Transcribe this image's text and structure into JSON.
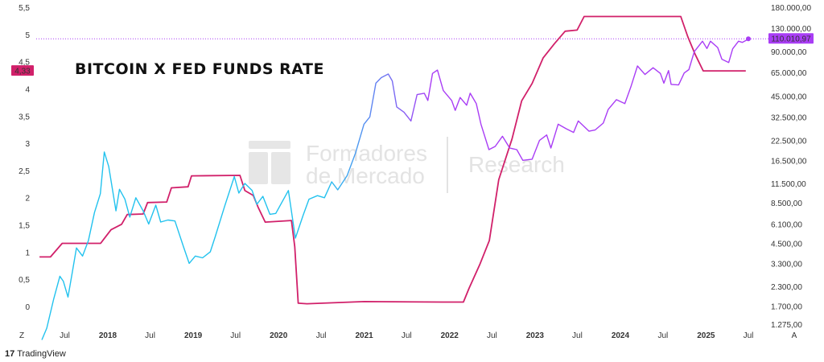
{
  "chart_data": {
    "type": "line",
    "title": "BITCOIN X FED FUNDS RATE",
    "watermark": {
      "line1": "Formadores",
      "line2": "de Mercado",
      "right": "Research"
    },
    "x_axis": {
      "range": [
        "2017-03-01",
        "2025-09-01"
      ],
      "ticks": [
        {
          "date": "2017-07-01",
          "label": "Jul",
          "bold": false
        },
        {
          "date": "2018-01-01",
          "label": "2018",
          "bold": true
        },
        {
          "date": "2018-07-01",
          "label": "Jul",
          "bold": false
        },
        {
          "date": "2019-01-01",
          "label": "2019",
          "bold": true
        },
        {
          "date": "2019-07-01",
          "label": "Jul",
          "bold": false
        },
        {
          "date": "2020-01-01",
          "label": "2020",
          "bold": true
        },
        {
          "date": "2020-07-01",
          "label": "Jul",
          "bold": false
        },
        {
          "date": "2021-01-01",
          "label": "2021",
          "bold": true
        },
        {
          "date": "2021-07-01",
          "label": "Jul",
          "bold": false
        },
        {
          "date": "2022-01-01",
          "label": "2022",
          "bold": true
        },
        {
          "date": "2022-07-01",
          "label": "Jul",
          "bold": false
        },
        {
          "date": "2023-01-01",
          "label": "2023",
          "bold": true
        },
        {
          "date": "2023-07-01",
          "label": "Jul",
          "bold": false
        },
        {
          "date": "2024-01-01",
          "label": "2024",
          "bold": true
        },
        {
          "date": "2024-07-01",
          "label": "Jul",
          "bold": false
        },
        {
          "date": "2025-01-01",
          "label": "2025",
          "bold": true
        },
        {
          "date": "2025-07-01",
          "label": "Jul",
          "bold": false
        }
      ]
    },
    "left_axis": {
      "label": "",
      "range": [
        -0.4,
        5.5
      ],
      "ticks": [
        {
          "value": 0,
          "label": "0"
        },
        {
          "value": 0.5,
          "label": "0,5"
        },
        {
          "value": 1,
          "label": "1"
        },
        {
          "value": 1.5,
          "label": "1,5"
        },
        {
          "value": 2,
          "label": "2"
        },
        {
          "value": 2.5,
          "label": "2,5"
        },
        {
          "value": 3,
          "label": "3"
        },
        {
          "value": 3.5,
          "label": "3,5"
        },
        {
          "value": 4,
          "label": "4"
        },
        {
          "value": 4.5,
          "label": "4,5"
        },
        {
          "value": 5,
          "label": "5"
        },
        {
          "value": 5.5,
          "label": "5,5"
        }
      ]
    },
    "right_axis": {
      "label": "",
      "scale": "log",
      "range": [
        1200,
        180000
      ],
      "ticks": [
        {
          "value": 180000,
          "label": "180.000,00"
        },
        {
          "value": 130000,
          "label": "130.000,00"
        },
        {
          "value": 90000,
          "label": "90.000,00"
        },
        {
          "value": 65000,
          "label": "65.000,00"
        },
        {
          "value": 45000,
          "label": "45.000,00"
        },
        {
          "value": 32500,
          "label": "32.500,00"
        },
        {
          "value": 22500,
          "label": "22.500,00"
        },
        {
          "value": 16500,
          "label": "16.500,00"
        },
        {
          "value": 11500,
          "label": "11.500,00"
        },
        {
          "value": 8500,
          "label": "8.500,00"
        },
        {
          "value": 6100,
          "label": "6.100,00"
        },
        {
          "value": 4500,
          "label": "4.500,00"
        },
        {
          "value": 3300,
          "label": "3.300,00"
        },
        {
          "value": 2300,
          "label": "2.300,00"
        },
        {
          "value": 1700,
          "label": "1.700,00"
        },
        {
          "value": 1275,
          "label": "1.275,00"
        }
      ]
    },
    "markers": {
      "fed_current": {
        "value": 4.33,
        "label": "4,33",
        "color": "#d1206a"
      },
      "btc_current": {
        "value": 110010.97,
        "label": "110.010,97",
        "color": "#a93df5"
      }
    },
    "axis_corner_labels": {
      "left": "Z",
      "right": "A"
    },
    "series": [
      {
        "key": "fed",
        "axis": "left",
        "color": "#d1206a",
        "points": [
          [
            "2017-03-15",
            0.91
          ],
          [
            "2017-05-01",
            0.91
          ],
          [
            "2017-06-20",
            1.16
          ],
          [
            "2017-12-01",
            1.16
          ],
          [
            "2018-01-15",
            1.41
          ],
          [
            "2018-03-01",
            1.51
          ],
          [
            "2018-03-25",
            1.69
          ],
          [
            "2018-06-01",
            1.7
          ],
          [
            "2018-06-20",
            1.91
          ],
          [
            "2018-09-10",
            1.92
          ],
          [
            "2018-09-30",
            2.18
          ],
          [
            "2018-12-10",
            2.2
          ],
          [
            "2018-12-25",
            2.4
          ],
          [
            "2019-07-20",
            2.41
          ],
          [
            "2019-08-10",
            2.13
          ],
          [
            "2019-09-15",
            2.04
          ],
          [
            "2019-10-05",
            1.83
          ],
          [
            "2019-11-05",
            1.55
          ],
          [
            "2020-02-25",
            1.58
          ],
          [
            "2020-03-10",
            1.1
          ],
          [
            "2020-03-25",
            0.06
          ],
          [
            "2020-05-01",
            0.05
          ],
          [
            "2021-01-01",
            0.09
          ],
          [
            "2021-12-01",
            0.08
          ],
          [
            "2022-03-01",
            0.08
          ],
          [
            "2022-03-25",
            0.33
          ],
          [
            "2022-05-10",
            0.77
          ],
          [
            "2022-06-20",
            1.21
          ],
          [
            "2022-07-30",
            2.33
          ],
          [
            "2022-09-25",
            3.08
          ],
          [
            "2022-11-05",
            3.78
          ],
          [
            "2022-12-20",
            4.1
          ],
          [
            "2023-02-05",
            4.57
          ],
          [
            "2023-03-25",
            4.83
          ],
          [
            "2023-05-10",
            5.06
          ],
          [
            "2023-06-30",
            5.08
          ],
          [
            "2023-07-30",
            5.33
          ],
          [
            "2024-09-15",
            5.33
          ],
          [
            "2024-10-15",
            4.96
          ],
          [
            "2024-11-15",
            4.64
          ],
          [
            "2024-12-20",
            4.33
          ],
          [
            "2025-06-20",
            4.33
          ]
        ]
      },
      {
        "key": "btc",
        "axis": "right",
        "color_start": "#22c2ee",
        "color_end": "#a93df5",
        "points": [
          [
            "2017-03-25",
            1000
          ],
          [
            "2017-04-15",
            1200
          ],
          [
            "2017-05-15",
            1900
          ],
          [
            "2017-06-10",
            2700
          ],
          [
            "2017-06-25",
            2500
          ],
          [
            "2017-07-15",
            1950
          ],
          [
            "2017-08-01",
            2800
          ],
          [
            "2017-08-20",
            4200
          ],
          [
            "2017-09-15",
            3700
          ],
          [
            "2017-10-10",
            4700
          ],
          [
            "2017-11-05",
            7300
          ],
          [
            "2017-11-30",
            9800
          ],
          [
            "2017-12-17",
            18800
          ],
          [
            "2018-01-05",
            15000
          ],
          [
            "2018-02-05",
            7500
          ],
          [
            "2018-02-20",
            10500
          ],
          [
            "2018-03-15",
            9000
          ],
          [
            "2018-04-05",
            6800
          ],
          [
            "2018-05-01",
            9200
          ],
          [
            "2018-06-01",
            7500
          ],
          [
            "2018-06-25",
            6100
          ],
          [
            "2018-07-25",
            8200
          ],
          [
            "2018-08-15",
            6300
          ],
          [
            "2018-09-15",
            6500
          ],
          [
            "2018-10-15",
            6400
          ],
          [
            "2018-11-20",
            4300
          ],
          [
            "2018-12-15",
            3300
          ],
          [
            "2019-01-10",
            3700
          ],
          [
            "2019-02-10",
            3600
          ],
          [
            "2019-03-15",
            3950
          ],
          [
            "2019-04-05",
            5000
          ],
          [
            "2019-05-15",
            8000
          ],
          [
            "2019-06-26",
            12800
          ],
          [
            "2019-07-15",
            9900
          ],
          [
            "2019-08-10",
            11500
          ],
          [
            "2019-09-10",
            10300
          ],
          [
            "2019-09-30",
            8300
          ],
          [
            "2019-10-26",
            9400
          ],
          [
            "2019-11-25",
            7100
          ],
          [
            "2019-12-20",
            7200
          ],
          [
            "2020-02-12",
            10300
          ],
          [
            "2020-03-13",
            4900
          ],
          [
            "2020-04-15",
            7000
          ],
          [
            "2020-05-10",
            9000
          ],
          [
            "2020-06-15",
            9500
          ],
          [
            "2020-07-15",
            9200
          ],
          [
            "2020-08-15",
            11800
          ],
          [
            "2020-09-10",
            10400
          ],
          [
            "2020-10-20",
            13000
          ],
          [
            "2020-11-25",
            18500
          ],
          [
            "2020-12-31",
            29000
          ],
          [
            "2021-01-25",
            32500
          ],
          [
            "2021-02-20",
            55000
          ],
          [
            "2021-03-15",
            60000
          ],
          [
            "2021-04-14",
            63500
          ],
          [
            "2021-05-01",
            57000
          ],
          [
            "2021-05-20",
            38000
          ],
          [
            "2021-06-20",
            35000
          ],
          [
            "2021-07-20",
            30500
          ],
          [
            "2021-08-15",
            46000
          ],
          [
            "2021-09-15",
            47000
          ],
          [
            "2021-09-30",
            42000
          ],
          [
            "2021-10-20",
            64000
          ],
          [
            "2021-11-10",
            67500
          ],
          [
            "2021-12-05",
            49000
          ],
          [
            "2022-01-10",
            42000
          ],
          [
            "2022-01-25",
            36000
          ],
          [
            "2022-02-15",
            44000
          ],
          [
            "2022-03-15",
            39000
          ],
          [
            "2022-03-30",
            47000
          ],
          [
            "2022-04-25",
            40000
          ],
          [
            "2022-05-15",
            29000
          ],
          [
            "2022-06-18",
            19500
          ],
          [
            "2022-07-15",
            20500
          ],
          [
            "2022-08-15",
            24000
          ],
          [
            "2022-09-15",
            20000
          ],
          [
            "2022-10-15",
            19500
          ],
          [
            "2022-11-10",
            16500
          ],
          [
            "2022-12-20",
            16800
          ],
          [
            "2023-01-20",
            22500
          ],
          [
            "2023-02-20",
            24500
          ],
          [
            "2023-03-10",
            20000
          ],
          [
            "2023-04-10",
            29000
          ],
          [
            "2023-05-15",
            27000
          ],
          [
            "2023-06-15",
            25500
          ],
          [
            "2023-07-05",
            30500
          ],
          [
            "2023-08-20",
            26000
          ],
          [
            "2023-09-15",
            26500
          ],
          [
            "2023-10-20",
            29500
          ],
          [
            "2023-11-10",
            36500
          ],
          [
            "2023-12-15",
            42500
          ],
          [
            "2024-01-20",
            40000
          ],
          [
            "2024-02-15",
            52000
          ],
          [
            "2024-03-14",
            72000
          ],
          [
            "2024-04-15",
            63000
          ],
          [
            "2024-05-20",
            70000
          ],
          [
            "2024-06-20",
            64000
          ],
          [
            "2024-07-05",
            55000
          ],
          [
            "2024-07-25",
            67000
          ],
          [
            "2024-08-05",
            54000
          ],
          [
            "2024-09-06",
            53500
          ],
          [
            "2024-09-30",
            64500
          ],
          [
            "2024-10-20",
            68000
          ],
          [
            "2024-11-12",
            90000
          ],
          [
            "2024-12-17",
            106000
          ],
          [
            "2025-01-05",
            94500
          ],
          [
            "2025-01-20",
            106000
          ],
          [
            "2025-02-20",
            96000
          ],
          [
            "2025-03-10",
            80000
          ],
          [
            "2025-04-08",
            76000
          ],
          [
            "2025-04-25",
            94000
          ],
          [
            "2025-05-20",
            106000
          ],
          [
            "2025-06-05",
            104000
          ],
          [
            "2025-06-20",
            107000
          ],
          [
            "2025-07-01",
            110010.97
          ]
        ]
      }
    ]
  },
  "footer": {
    "brand": "TradingView"
  }
}
